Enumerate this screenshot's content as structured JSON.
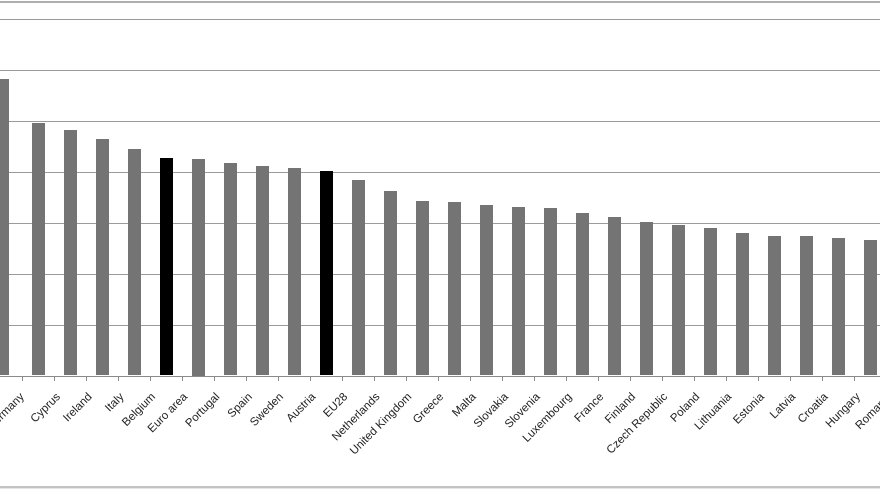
{
  "chart_data": {
    "type": "bar",
    "title": "",
    "xlabel": "",
    "ylabel": "",
    "ylim": [
      0,
      73.5
    ],
    "grid": true,
    "y_tick_labels_visible": false,
    "gridline_values": [
      10,
      20,
      30,
      40,
      50,
      60,
      70
    ],
    "x_tick_rotation": 45,
    "legend_position": "none",
    "categories": [
      "Germany",
      "Cyprus",
      "Ireland",
      "Italy",
      "Belgium",
      "Euro area",
      "Portugal",
      "Spain",
      "Sweden",
      "Austria",
      "EU28",
      "Netherlands",
      "United Kingdom",
      "Greece",
      "Malta",
      "Slovakia",
      "Slovenia",
      "Luxembourg",
      "France",
      "Finland",
      "Czech Republic",
      "Poland",
      "Lithuania",
      "Estonia",
      "Latvia",
      "Croatia",
      "Hungary",
      "Romania"
    ],
    "values": [
      58.1,
      49.5,
      48.1,
      46.4,
      44.4,
      42.7,
      42.5,
      41.7,
      41.1,
      40.7,
      40.1,
      38.3,
      36.2,
      34.2,
      34.0,
      33.4,
      33.0,
      32.8,
      31.9,
      31.1,
      30.1,
      29.5,
      28.9,
      27.9,
      27.4,
      27.4,
      27.0,
      26.6
    ],
    "highlighted_categories": [
      "Euro area",
      "EU28"
    ],
    "clipped_categories": [
      "Germany",
      "Romania"
    ],
    "colors": {
      "bar": "#747474",
      "highlight": "#000000",
      "gridline": "#9b9b9b",
      "axis": "#8a8a8a",
      "label_text": "#222222",
      "background": "#ffffff"
    }
  }
}
